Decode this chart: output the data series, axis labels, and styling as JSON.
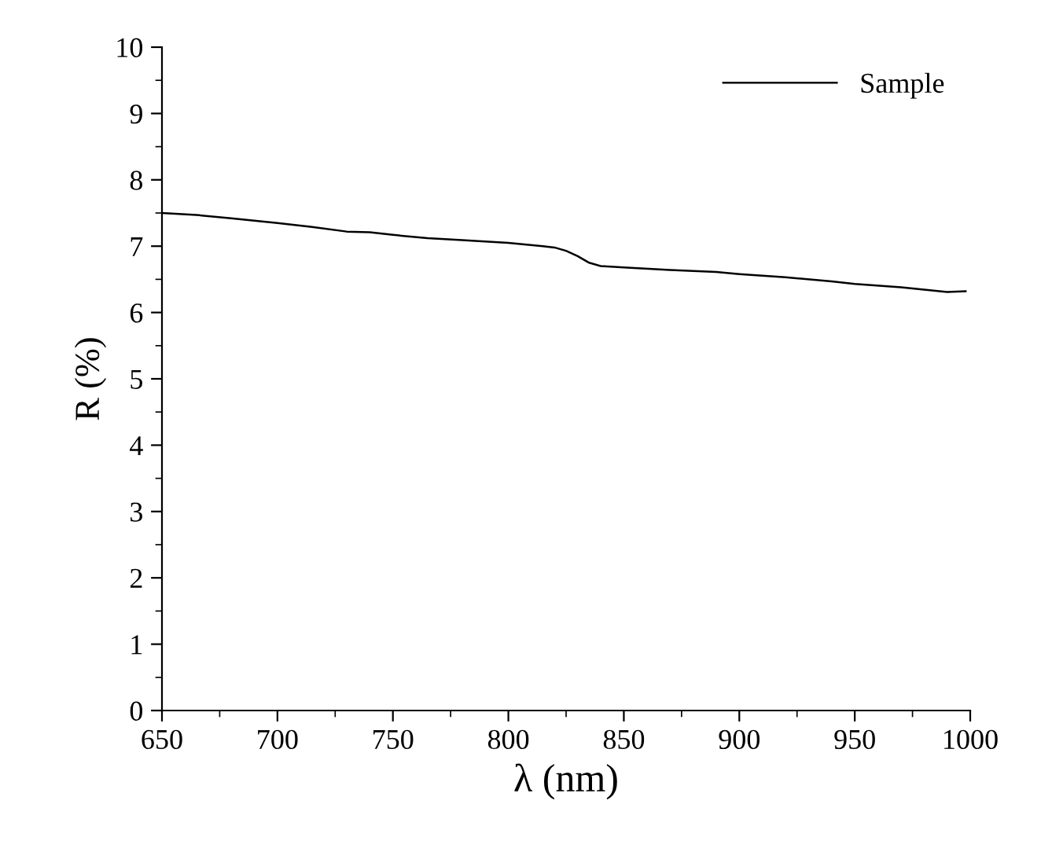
{
  "chart_data": {
    "type": "line",
    "xlabel": "λ (nm)",
    "ylabel": "R (%)",
    "series": [
      {
        "name": "Sample",
        "color": "#000000",
        "x": [
          650,
          665,
          680,
          700,
          715,
          730,
          740,
          750,
          765,
          780,
          800,
          815,
          820,
          825,
          830,
          835,
          840,
          850,
          870,
          890,
          900,
          920,
          940,
          950,
          970,
          990,
          998
        ],
        "values": [
          7.5,
          7.47,
          7.42,
          7.35,
          7.29,
          7.22,
          7.21,
          7.17,
          7.12,
          7.09,
          7.05,
          7.0,
          6.98,
          6.93,
          6.85,
          6.75,
          6.7,
          6.68,
          6.64,
          6.61,
          6.58,
          6.53,
          6.47,
          6.43,
          6.38,
          6.31,
          6.32
        ]
      }
    ],
    "xlim": [
      650,
      1000
    ],
    "xticks": [
      650,
      700,
      750,
      800,
      850,
      900,
      950,
      1000
    ],
    "ylim": [
      0,
      10
    ],
    "yticks": [
      0,
      1,
      2,
      3,
      4,
      5,
      6,
      7,
      8,
      9,
      10
    ],
    "grid": false,
    "legend": "top right",
    "marker": "none",
    "line_style": "solid"
  }
}
